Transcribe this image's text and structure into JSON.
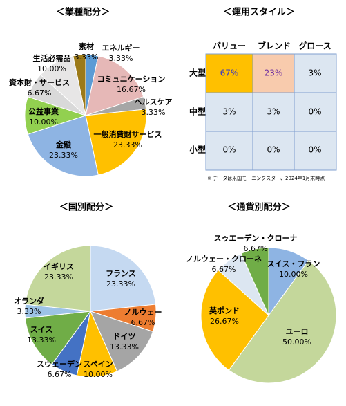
{
  "chart_data": [
    {
      "type": "pie",
      "title": "＜業種配分＞",
      "categories": [
        "エネルギー",
        "コミュニケーション",
        "ヘルスケア",
        "一般消費財サービス",
        "金融",
        "公益事業",
        "資本財・サービス",
        "生活必需品",
        "素材"
      ],
      "values": [
        3.33,
        16.67,
        3.33,
        23.33,
        23.33,
        10.0,
        6.67,
        10.0,
        3.33
      ],
      "value_labels": [
        "3.33%",
        "16.67%",
        "3.33%",
        "23.33%",
        "23.33%",
        "10.00%",
        "6.67%",
        "10.00%",
        "3.33%"
      ],
      "colors": [
        "#5b9bd5",
        "#e6b8b7",
        "#a6a6a6",
        "#ffc000",
        "#8eb4e3",
        "#92d050",
        "#d9d9d9",
        "#e7e6e6",
        "#9c7a18"
      ]
    },
    {
      "type": "pie",
      "title": "＜国別配分＞",
      "categories": [
        "フランス",
        "ノルウェー",
        "ドイツ",
        "スペイン",
        "スウェーデン",
        "スイス",
        "オランダ",
        "イギリス"
      ],
      "values": [
        23.33,
        6.67,
        13.33,
        10.0,
        6.67,
        13.33,
        3.33,
        23.33
      ],
      "value_labels": [
        "23.33%",
        "6.67%",
        "13.33%",
        "10.00%",
        "6.67%",
        "13.33%",
        "3.33%",
        "23.33%"
      ],
      "colors": [
        "#c5d9f1",
        "#ed7d31",
        "#a5a5a5",
        "#ffc000",
        "#4472c4",
        "#70ad47",
        "#9dc3e6",
        "#c4d79b"
      ]
    },
    {
      "type": "pie",
      "title": "＜通貨別配分＞",
      "categories": [
        "スイス・フラン",
        "ユーロ",
        "英ポンド",
        "ノルウェー・クローネ",
        "スゥエーデン・クローナ"
      ],
      "values": [
        10.0,
        50.0,
        26.67,
        6.67,
        6.67
      ],
      "value_labels": [
        "10.00%",
        "50.00%",
        "26.67%",
        "6.67%",
        "6.67%"
      ],
      "colors": [
        "#8eb4e3",
        "#c4d79b",
        "#ffc000",
        "#dce6f1",
        "#70ad47"
      ]
    }
  ],
  "style_box": {
    "title": "＜運用スタイル＞",
    "columns": [
      "バリュー",
      "ブレンド",
      "グロース"
    ],
    "rows": [
      {
        "label": "大型",
        "values": [
          "67%",
          "23%",
          "3%"
        ]
      },
      {
        "label": "中型",
        "values": [
          "3%",
          "3%",
          "0%"
        ]
      },
      {
        "label": "小型",
        "values": [
          "0%",
          "0%",
          "0%"
        ]
      }
    ],
    "note": "※ データは米国モーニングスター、2024年1月末時点"
  }
}
